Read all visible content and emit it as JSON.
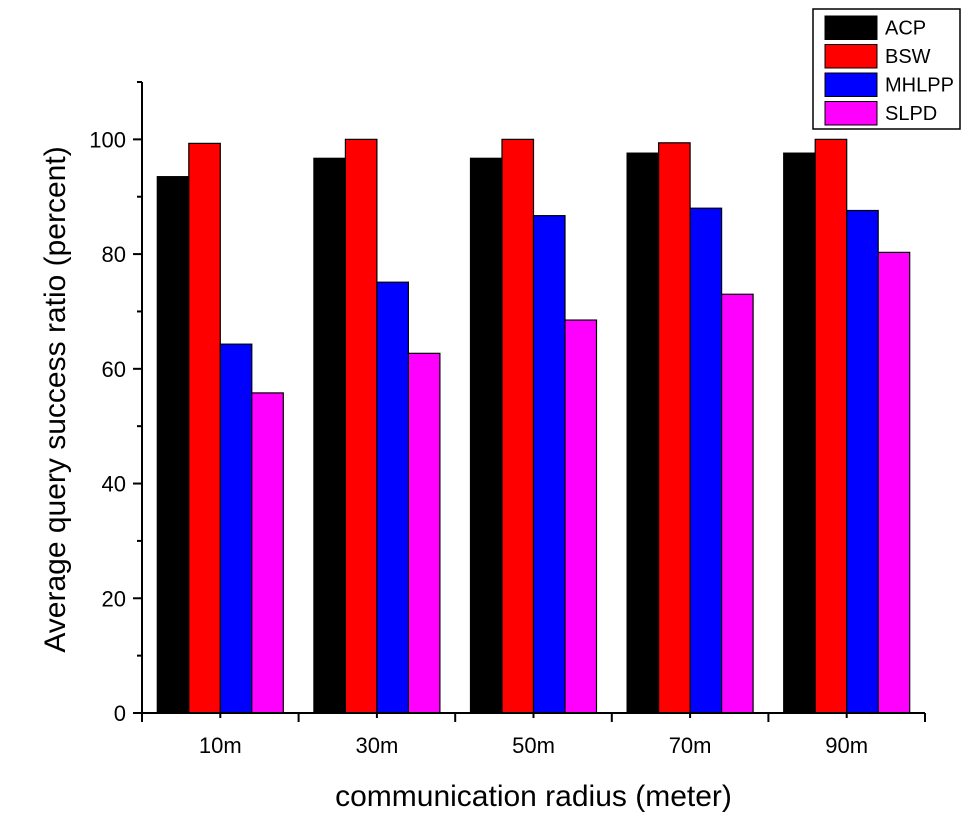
{
  "chart_data": {
    "type": "bar",
    "xlabel": "communication radius (meter)",
    "ylabel": "Average query success ratio (percent)",
    "categories": [
      "10m",
      "30m",
      "50m",
      "70m",
      "90m"
    ],
    "ylim": [
      0,
      110
    ],
    "yticks": [
      0,
      20,
      40,
      60,
      80,
      100
    ],
    "grid": false,
    "legend_position": "top-right",
    "series": [
      {
        "name": "ACP",
        "color": "#000000",
        "values": [
          93.5,
          96.7,
          96.7,
          97.6,
          97.6
        ]
      },
      {
        "name": "BSW",
        "color": "#ff0000",
        "values": [
          99.3,
          100.0,
          100.0,
          99.4,
          100.0
        ]
      },
      {
        "name": "MHLPP",
        "color": "#0000ff",
        "values": [
          64.3,
          75.1,
          86.7,
          88.0,
          87.6
        ]
      },
      {
        "name": "SLPD",
        "color": "#ff00ff",
        "values": [
          55.8,
          62.7,
          68.5,
          73.0,
          80.3
        ]
      }
    ]
  }
}
